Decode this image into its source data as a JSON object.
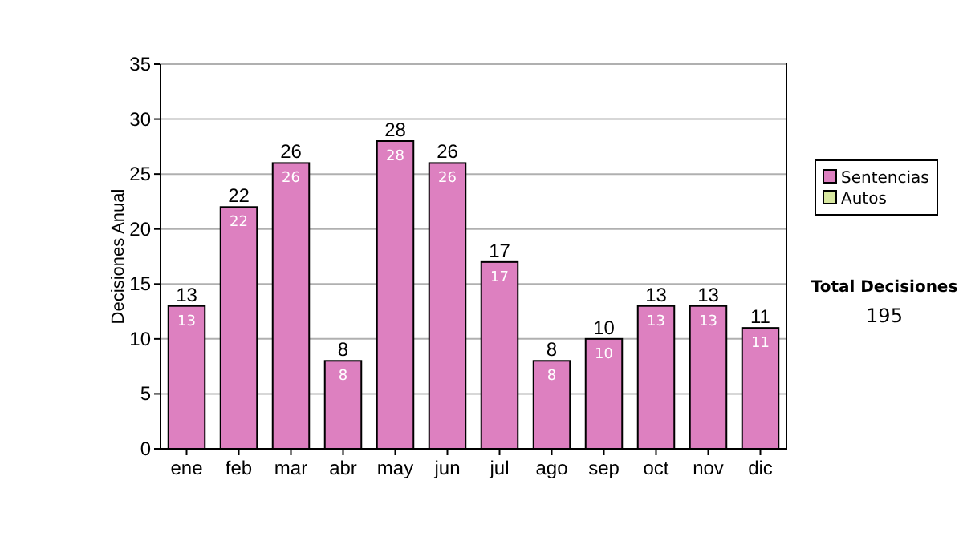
{
  "chart_data": {
    "type": "bar",
    "stacked": true,
    "ylabel": "Decisiones Anual",
    "categories": [
      "ene",
      "feb",
      "mar",
      "abr",
      "may",
      "jun",
      "jul",
      "ago",
      "sep",
      "oct",
      "nov",
      "dic"
    ],
    "series": [
      {
        "name": "Sentencias",
        "color": "#dd80c0",
        "values": [
          13,
          22,
          26,
          8,
          28,
          26,
          17,
          8,
          10,
          13,
          13,
          11
        ]
      },
      {
        "name": "Autos",
        "color": "#d8e8a0",
        "values": [
          null,
          null,
          null,
          null,
          null,
          null,
          null,
          null,
          null,
          null,
          null,
          null
        ]
      }
    ],
    "totals": [
      "13",
      "22",
      "26",
      "8",
      "28",
      "26",
      "17",
      "8",
      "10",
      "13",
      "13",
      "11"
    ],
    "data_labels": true,
    "ylim": [
      0,
      35
    ],
    "yticks": [
      0,
      5,
      10,
      15,
      20,
      25,
      30,
      35
    ],
    "grid": "y",
    "legend": "right",
    "annotations": [
      "Total Decisiones",
      "195"
    ]
  }
}
